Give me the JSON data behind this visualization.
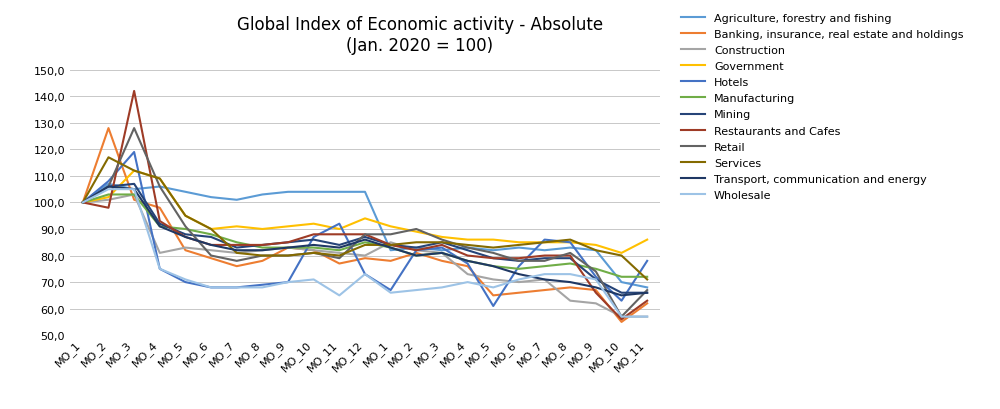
{
  "title": "Global Index of Economic activity - Absolute\n(Jan. 2020 = 100)",
  "x_labels": [
    "MO_1",
    "MO_2",
    "MO_3",
    "MO_4",
    "MO_5",
    "MO_6",
    "MO_7",
    "MO_8",
    "MO_9",
    "MO_10",
    "MO_11",
    "MO_12",
    "MO_1",
    "MO_2",
    "MO_3",
    "MO_4",
    "MO_5",
    "MO_6",
    "MO_7",
    "MO_8",
    "MO_9",
    "MO_10",
    "MO_11"
  ],
  "ylim": [
    50,
    155
  ],
  "yticks": [
    50,
    60,
    70,
    80,
    90,
    100,
    110,
    120,
    130,
    140,
    150
  ],
  "series": [
    {
      "label": "Agriculture, forestry and fishing",
      "color": "#5B9BD5",
      "linewidth": 1.5,
      "values": [
        100,
        107,
        105,
        106,
        104,
        102,
        101,
        103,
        104,
        104,
        104,
        104,
        82,
        83,
        82,
        83,
        82,
        83,
        82,
        83,
        82,
        70,
        68
      ]
    },
    {
      "label": "Banking, insurance, real estate and holdings",
      "color": "#ED7D31",
      "linewidth": 1.5,
      "values": [
        100,
        128,
        101,
        98,
        82,
        79,
        76,
        78,
        83,
        82,
        77,
        79,
        78,
        81,
        78,
        76,
        65,
        66,
        67,
        68,
        67,
        55,
        62
      ]
    },
    {
      "label": "Construction",
      "color": "#A5A5A5",
      "linewidth": 1.5,
      "values": [
        100,
        101,
        103,
        81,
        83,
        82,
        81,
        82,
        83,
        82,
        81,
        80,
        85,
        82,
        81,
        73,
        71,
        70,
        71,
        63,
        62,
        57,
        57
      ]
    },
    {
      "label": "Government",
      "color": "#FFC000",
      "linewidth": 1.5,
      "values": [
        100,
        102,
        112,
        109,
        95,
        90,
        91,
        90,
        91,
        92,
        90,
        94,
        91,
        89,
        87,
        86,
        86,
        85,
        85,
        85,
        84,
        81,
        86
      ]
    },
    {
      "label": "Hotels",
      "color": "#4472C4",
      "linewidth": 1.5,
      "values": [
        100,
        108,
        119,
        75,
        70,
        68,
        68,
        69,
        70,
        87,
        92,
        73,
        67,
        82,
        83,
        77,
        61,
        76,
        86,
        85,
        72,
        63,
        78
      ]
    },
    {
      "label": "Manufacturing",
      "color": "#70AD47",
      "linewidth": 1.5,
      "values": [
        100,
        103,
        103,
        91,
        90,
        88,
        85,
        83,
        83,
        83,
        82,
        85,
        83,
        80,
        81,
        78,
        76,
        75,
        76,
        77,
        75,
        72,
        72
      ]
    },
    {
      "label": "Mining",
      "color": "#264478",
      "linewidth": 1.5,
      "values": [
        100,
        106,
        107,
        92,
        88,
        87,
        83,
        84,
        85,
        86,
        84,
        87,
        84,
        83,
        85,
        82,
        79,
        78,
        79,
        79,
        71,
        66,
        66
      ]
    },
    {
      "label": "Restaurants and Cafes",
      "color": "#9E3B26",
      "linewidth": 1.5,
      "values": [
        100,
        98,
        142,
        93,
        87,
        84,
        84,
        84,
        85,
        88,
        88,
        88,
        84,
        82,
        84,
        80,
        79,
        79,
        80,
        80,
        66,
        56,
        63
      ]
    },
    {
      "label": "Retail",
      "color": "#636363",
      "linewidth": 1.5,
      "values": [
        100,
        106,
        128,
        106,
        91,
        80,
        78,
        80,
        80,
        81,
        79,
        88,
        88,
        90,
        86,
        83,
        81,
        78,
        78,
        81,
        74,
        57,
        67
      ]
    },
    {
      "label": "Services",
      "color": "#846A00",
      "linewidth": 1.5,
      "values": [
        100,
        117,
        112,
        109,
        95,
        90,
        81,
        80,
        80,
        81,
        80,
        84,
        84,
        85,
        85,
        84,
        83,
        84,
        85,
        86,
        82,
        80,
        71
      ]
    },
    {
      "label": "Transport, communication and energy",
      "color": "#1F3864",
      "linewidth": 1.5,
      "values": [
        100,
        106,
        105,
        91,
        87,
        84,
        82,
        82,
        83,
        84,
        83,
        86,
        83,
        80,
        81,
        78,
        76,
        73,
        71,
        70,
        68,
        65,
        66
      ]
    },
    {
      "label": "Wholesale",
      "color": "#9DC3E6",
      "linewidth": 1.5,
      "values": [
        100,
        105,
        105,
        75,
        71,
        68,
        68,
        68,
        70,
        71,
        65,
        73,
        66,
        67,
        68,
        70,
        68,
        71,
        73,
        73,
        71,
        57,
        57
      ]
    }
  ],
  "title_fontsize": 12,
  "tick_fontsize": 8,
  "legend_fontsize": 8,
  "bg_color": "#ffffff",
  "grid_color": "#C8C8C8"
}
